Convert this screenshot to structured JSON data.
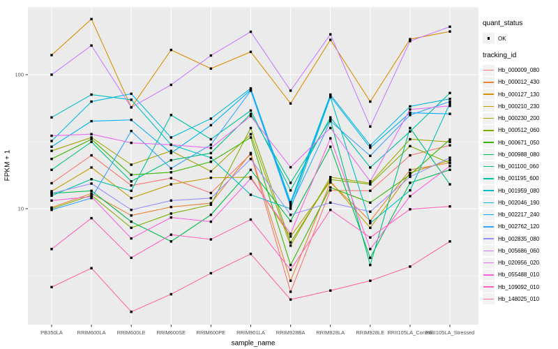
{
  "legend": {
    "quant_status": {
      "title": "quant_status",
      "items": [
        {
          "label": "OK"
        }
      ]
    },
    "tracking_id": {
      "title": "tracking_id"
    }
  },
  "chart_data": {
    "type": "line",
    "title": "",
    "xlabel": "sample_name",
    "ylabel": "FPKM + 1",
    "y_scale": "log10",
    "ylim": [
      1.36,
      320
    ],
    "y_ticks": [
      100,
      10
    ],
    "y_minor": [
      3.1623,
      31.6228,
      316.228
    ],
    "grid": true,
    "legend_position": "right",
    "panel_bg": "#EBEBEB",
    "grid_color": "#FFFFFF",
    "key_bg": "#F2F2F2",
    "axis_text_color": "#4D4D4D",
    "point_color": "#000000",
    "point_shape": "square",
    "categories": [
      "PB350LA",
      "RRIM600LA",
      "RRIM600LE",
      "RRIM600SE",
      "RRIM600PE",
      "RRIM901LA",
      "RRIM928BA",
      "RRIM928LA",
      "RRIM928LE",
      "RRII105LA_Control",
      "RRII105LA_Stressed"
    ],
    "series": [
      {
        "name": "Hb_000009_080",
        "color": "#F8766D",
        "values": [
          15.5,
          25,
          14.9,
          16.9,
          13.1,
          25.5,
          2.4,
          13.7,
          13.6,
          25,
          29.7
        ]
      },
      {
        "name": "Hb_000012_430",
        "color": "#EA8331",
        "values": [
          10.2,
          13,
          8.9,
          10.3,
          11,
          26,
          2.9,
          15.7,
          8.1,
          19.5,
          22
        ]
      },
      {
        "name": "Hb_000127_130",
        "color": "#D89000",
        "values": [
          140,
          260,
          57,
          153,
          111,
          148,
          61,
          182,
          63,
          184,
          210
        ]
      },
      {
        "name": "Hb_000210_230",
        "color": "#C09B00",
        "values": [
          13.5,
          20.3,
          12,
          15.2,
          17,
          17.2,
          6.2,
          16,
          7.2,
          18.5,
          23
        ]
      },
      {
        "name": "Hb_000230_200",
        "color": "#A3A500",
        "values": [
          27,
          34,
          21.3,
          27,
          19,
          36,
          5.3,
          17.2,
          15.5,
          33,
          31.5
        ]
      },
      {
        "name": "Hb_000512_060",
        "color": "#7CAE00",
        "values": [
          10,
          12.6,
          7.2,
          9.2,
          10.7,
          40,
          5.6,
          16.5,
          15.2,
          29.3,
          21.9
        ]
      },
      {
        "name": "Hb_000671_050",
        "color": "#39B600",
        "values": [
          23.5,
          33,
          17.9,
          18.7,
          22.4,
          34,
          3.8,
          14.4,
          11.1,
          17.9,
          32.8
        ]
      },
      {
        "name": "Hb_000988_080",
        "color": "#00BB4E",
        "values": [
          13,
          13.6,
          8.0,
          5.7,
          9,
          19.5,
          8.1,
          29,
          4.3,
          15.6,
          19.5
        ]
      },
      {
        "name": "Hb_001100_060",
        "color": "#00BF7D",
        "values": [
          19.5,
          31.5,
          16,
          23,
          26,
          51,
          15.6,
          46,
          3.8,
          40,
          15.2
        ]
      },
      {
        "name": "Hb_001195_600",
        "color": "#00C1A3",
        "values": [
          12.5,
          16.6,
          13.6,
          50,
          33,
          54,
          13.7,
          48,
          20.3,
          37.7,
          73
        ]
      },
      {
        "name": "Hb_001959_080",
        "color": "#00BFC4",
        "values": [
          48,
          71,
          65,
          30,
          24,
          12.7,
          10.0,
          68,
          7.8,
          13.7,
          61
        ]
      },
      {
        "name": "Hb_002046_190",
        "color": "#00BAE0",
        "values": [
          32,
          63,
          72,
          34,
          47,
          79,
          11.2,
          71,
          29.7,
          58,
          66
        ]
      },
      {
        "name": "Hb_002217_240",
        "color": "#00B0F6",
        "values": [
          29,
          45,
          46,
          26,
          42,
          77,
          10.8,
          69,
          28.5,
          52,
          51
        ]
      },
      {
        "name": "Hb_002762_120",
        "color": "#35A2FF",
        "values": [
          9.8,
          12,
          38,
          20,
          30,
          76,
          10.4,
          45,
          24.8,
          50,
          63
        ]
      },
      {
        "name": "Hb_002835_080",
        "color": "#9590FF",
        "values": [
          13,
          15.4,
          9.8,
          11.5,
          12,
          23.5,
          9.0,
          11.1,
          9.5,
          17.3,
          24
        ]
      },
      {
        "name": "Hb_005686_060",
        "color": "#C77CFF",
        "values": [
          100,
          165,
          57,
          84,
          139,
          209,
          76,
          200,
          41,
          178,
          228
        ]
      },
      {
        "name": "Hb_020956_020",
        "color": "#E76BF3",
        "values": [
          35,
          36,
          31,
          30,
          28.4,
          49,
          20.4,
          40,
          16,
          55,
          58.5
        ]
      },
      {
        "name": "Hb_055488_010",
        "color": "#FA62DB",
        "values": [
          11.5,
          12.3,
          6.0,
          8.6,
          8,
          16.8,
          6.5,
          33.5,
          5.0,
          12.4,
          20.8
        ]
      },
      {
        "name": "Hb_109092_010",
        "color": "#FF62BC",
        "values": [
          5.0,
          8.5,
          4.3,
          6.4,
          5.9,
          8.3,
          3.5,
          9.8,
          6.1,
          9.9,
          10.4
        ]
      },
      {
        "name": "Hb_148025_010",
        "color": "#FF6A98",
        "values": [
          2.6,
          3.6,
          1.7,
          2.3,
          3.3,
          4.6,
          2.1,
          2.45,
          2.9,
          3.7,
          5.7
        ]
      }
    ]
  }
}
